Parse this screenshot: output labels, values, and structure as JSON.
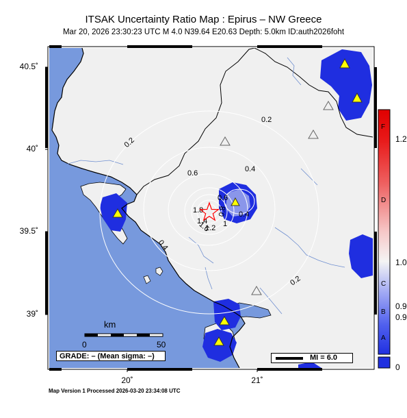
{
  "header": {
    "title": "ITSAK Uncertainty Ratio Map : Epirus – NW Greece",
    "subtitle": "Mar 20, 2026 23:30:23 UTC   M 4.0   N39.64 E20.63   Depth: 5.0km   ID:auth2026foht"
  },
  "axes": {
    "lat_labels": [
      "40.5˚",
      "40˚",
      "39.5˚",
      "39˚"
    ],
    "lon_labels": [
      "20˚",
      "21˚"
    ]
  },
  "contours": {
    "labels": [
      "0.2",
      "0.2",
      "0.2",
      "0.4",
      "0.4",
      "0.6",
      "0.6",
      "0.8",
      "1",
      "1.2",
      "1.4",
      "1.6",
      "1.8",
      "0.4"
    ]
  },
  "colorbar": {
    "letters": [
      "F",
      "D",
      "C",
      "B",
      "A"
    ],
    "values": [
      "1.2",
      "1.0",
      "0.9",
      "0.9",
      "0"
    ]
  },
  "scale": {
    "title": "km",
    "ticks": [
      "0",
      "50"
    ]
  },
  "grade": "GRADE: – (Mean sigma: –)",
  "mi": "MI = 6.0",
  "footer": "Map Version 1 Processed 2026-03-20 23:34:08 UTC",
  "colors": {
    "sea": "#7799dd",
    "land": "#f0f0f0",
    "high_blue": "#1f2ee0",
    "epicenter": "#ff0000",
    "station_fill": "#ffff00"
  }
}
